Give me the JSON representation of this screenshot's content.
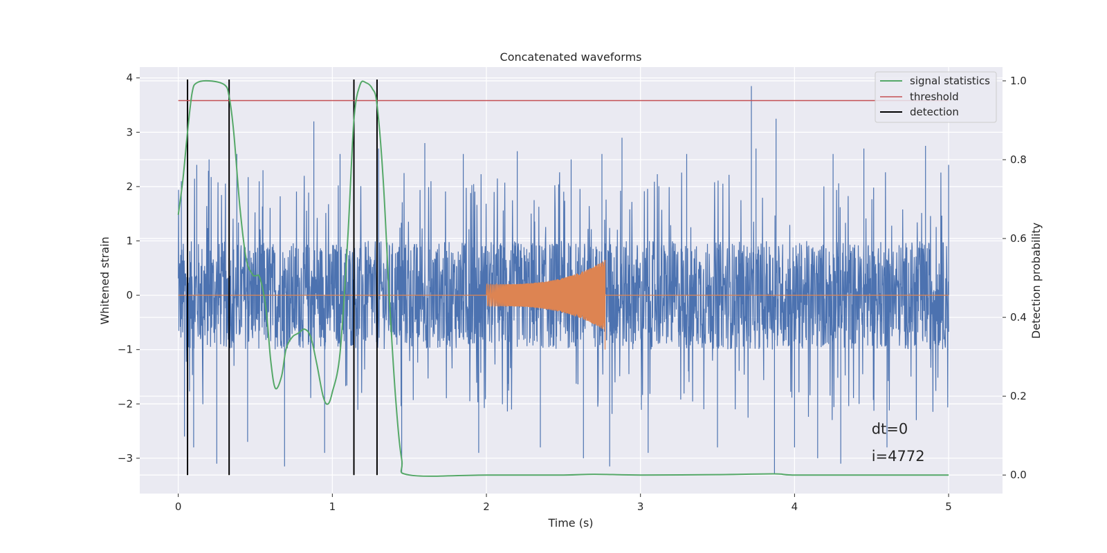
{
  "chart_data": {
    "type": "line",
    "title": "Concatenated waveforms",
    "xlabel": "Time (s)",
    "ylabel": "Whitened strain",
    "y2label": "Detection probability",
    "xlim": [
      -0.25,
      5.35
    ],
    "ylim": [
      -3.65,
      4.2
    ],
    "y2lim": [
      -0.047,
      1.035
    ],
    "x_ticks": [
      0,
      1,
      2,
      3,
      4,
      5
    ],
    "y_ticks": [
      -3,
      -2,
      -1,
      0,
      1,
      2,
      3,
      4
    ],
    "y2_ticks": [
      0.0,
      0.2,
      0.4,
      0.6,
      0.8,
      1.0
    ],
    "x_tick_labels": [
      "0",
      "1",
      "2",
      "3",
      "4",
      "5"
    ],
    "y_tick_labels": [
      "−3",
      "−2",
      "−1",
      "0",
      "1",
      "2",
      "3",
      "4"
    ],
    "y2_tick_labels": [
      "0.0",
      "0.2",
      "0.4",
      "0.6",
      "0.8",
      "1.0"
    ],
    "grid": true,
    "legend_position": "top-right",
    "colors": {
      "strain": "#4c72b0",
      "template": "#dd8452",
      "statistics": "#55a868",
      "threshold": "#c44e52",
      "detection": "#000000",
      "background": "#eaeaf2",
      "grid": "#ffffff"
    },
    "series": [
      {
        "name": "",
        "role": "whitened-strain",
        "axis": "left",
        "x_range": [
          0,
          5
        ],
        "typical_range": [
          -1,
          1
        ],
        "spikes": [
          [
            0.02,
            2.1
          ],
          [
            0.04,
            -2.6
          ],
          [
            0.1,
            -2.8
          ],
          [
            0.12,
            2.4
          ],
          [
            0.2,
            2.5
          ],
          [
            0.25,
            -3.1
          ],
          [
            0.38,
            2.6
          ],
          [
            0.45,
            -2.7
          ],
          [
            0.55,
            2.3
          ],
          [
            0.69,
            -3.15
          ],
          [
            0.88,
            3.2
          ],
          [
            0.95,
            -2.9
          ],
          [
            1.05,
            2.6
          ],
          [
            1.3,
            2.7
          ],
          [
            1.45,
            -3.25
          ],
          [
            1.6,
            2.8
          ],
          [
            1.85,
            2.6
          ],
          [
            1.95,
            -2.9
          ],
          [
            2.2,
            2.65
          ],
          [
            2.35,
            -2.8
          ],
          [
            2.55,
            2.5
          ],
          [
            2.63,
            -3.0
          ],
          [
            2.75,
            2.6
          ],
          [
            2.8,
            -3.15
          ],
          [
            2.88,
            2.9
          ],
          [
            3.05,
            -2.9
          ],
          [
            3.3,
            2.6
          ],
          [
            3.5,
            -2.8
          ],
          [
            3.72,
            3.85
          ],
          [
            3.75,
            2.7
          ],
          [
            3.88,
            3.25
          ],
          [
            3.87,
            -3.3
          ],
          [
            4.0,
            -2.8
          ],
          [
            4.15,
            -3.0
          ],
          [
            4.25,
            2.6
          ],
          [
            4.3,
            -3.1
          ],
          [
            4.45,
            2.7
          ],
          [
            4.6,
            -2.8
          ],
          [
            4.85,
            2.75
          ],
          [
            5.0,
            2.4
          ]
        ]
      },
      {
        "name": "",
        "role": "injected-template",
        "axis": "left",
        "x_range": [
          0,
          5
        ],
        "chirp_start": 2.0,
        "chirp_end": 2.77,
        "amp_start": 0.2,
        "amp_end": 0.65
      },
      {
        "name": "signal statistics",
        "axis": "right",
        "x": [
          0.0,
          0.03,
          0.06,
          0.09,
          0.12,
          0.2,
          0.3,
          0.33,
          0.36,
          0.4,
          0.44,
          0.48,
          0.5,
          0.53,
          0.57,
          0.6,
          0.63,
          0.67,
          0.7,
          0.74,
          0.78,
          0.82,
          0.86,
          0.9,
          0.94,
          0.97,
          1.0,
          1.05,
          1.1,
          1.14,
          1.18,
          1.22,
          1.26,
          1.29,
          1.33,
          1.37,
          1.41,
          1.45,
          1.5,
          2.0,
          2.5,
          2.7,
          3.0,
          3.5,
          3.87,
          4.0,
          4.5,
          5.0
        ],
        "values": [
          0.66,
          0.75,
          0.87,
          0.97,
          0.995,
          1.0,
          0.99,
          0.96,
          0.87,
          0.68,
          0.55,
          0.51,
          0.505,
          0.5,
          0.42,
          0.29,
          0.22,
          0.25,
          0.32,
          0.35,
          0.36,
          0.37,
          0.35,
          0.28,
          0.2,
          0.18,
          0.21,
          0.31,
          0.6,
          0.9,
          0.99,
          0.995,
          0.98,
          0.94,
          0.75,
          0.45,
          0.2,
          0.04,
          0.0,
          0.0,
          0.0,
          0.002,
          0.0,
          0.001,
          0.003,
          0.0,
          0.0,
          0.0
        ]
      },
      {
        "name": "threshold",
        "axis": "right",
        "x": [
          0,
          5
        ],
        "values": [
          0.95,
          0.95
        ]
      },
      {
        "name": "detection",
        "axis": "right",
        "x": [
          0.06,
          0.33,
          1.14,
          1.29
        ],
        "y_range": [
          0.0,
          1.0
        ]
      }
    ],
    "annotations": [
      {
        "text": "dt=0",
        "x": 4.5,
        "y": -2.55
      },
      {
        "text": "i=4772",
        "x": 4.5,
        "y": -3.05
      }
    ]
  }
}
